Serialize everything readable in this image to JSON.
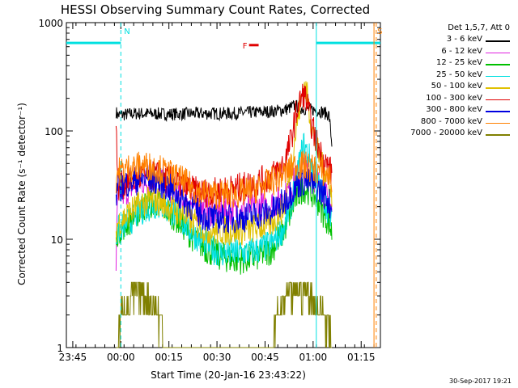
{
  "chart_data": {
    "type": "line",
    "title": "HESSI Observing Summary Count Rates, Corrected",
    "xlabel": "Start Time (20-Jan-16 23:43:22)",
    "ylabel": "Corrected Count Rate (s⁻¹ detector⁻¹)",
    "yscale": "log",
    "ylim": [
      1,
      1000
    ],
    "xlim_minutes": [
      -2,
      96
    ],
    "x_tick_labels": [
      "23:45",
      "00:00",
      "00:15",
      "00:30",
      "00:45",
      "01:00",
      "01:15"
    ],
    "x_tick_minutes": [
      0,
      15,
      30,
      45,
      60,
      75,
      90
    ],
    "y_tick_labels": [
      "1",
      "10",
      "100",
      "1000"
    ],
    "y_tick_values": [
      1,
      10,
      100,
      1000
    ],
    "legend_title": "Det 1,5,7, Att 0",
    "series": [
      {
        "name": "3 - 6 keV",
        "color": "#000000",
        "x": [
          13.5,
          14,
          20,
          30,
          40,
          50,
          55,
          60,
          65,
          67,
          68,
          69,
          70,
          72,
          74,
          76,
          78,
          80,
          81
        ],
        "y": [
          150,
          140,
          145,
          143,
          145,
          145,
          148,
          150,
          155,
          160,
          165,
          170,
          168,
          160,
          158,
          155,
          150,
          140,
          68
        ]
      },
      {
        "name": "6 - 12 keV",
        "color": "#e020e0",
        "x": [
          13.5,
          14,
          18,
          22,
          26,
          30,
          34,
          38,
          40,
          42,
          44,
          46,
          50,
          54,
          58,
          62,
          66,
          68,
          70,
          72,
          74,
          76,
          78,
          80,
          81
        ],
        "y": [
          6,
          24,
          30,
          34,
          34,
          30,
          24,
          20,
          19,
          18,
          18,
          18,
          18,
          19,
          20,
          21,
          24,
          30,
          38,
          45,
          42,
          35,
          28,
          22,
          18
        ]
      },
      {
        "name": "12 - 25 keV",
        "color": "#00c000",
        "x": [
          13.5,
          14,
          18,
          22,
          26,
          30,
          34,
          38,
          40,
          42,
          44,
          46,
          50,
          54,
          58,
          62,
          66,
          68,
          70,
          72,
          74,
          76,
          78,
          80,
          81
        ],
        "y": [
          9,
          12,
          15,
          20,
          22,
          18,
          14,
          10,
          9,
          8,
          7.5,
          7,
          6.5,
          6.5,
          7,
          8,
          12,
          18,
          25,
          30,
          28,
          24,
          18,
          14,
          11
        ]
      },
      {
        "name": "25 - 50 keV",
        "color": "#00e0e0",
        "x": [
          13.5,
          14,
          18,
          22,
          26,
          30,
          34,
          38,
          40,
          42,
          44,
          46,
          50,
          54,
          58,
          62,
          66,
          68,
          70,
          72,
          74,
          76,
          78,
          80,
          81
        ],
        "y": [
          10,
          12,
          15,
          19,
          21,
          19,
          15,
          11,
          10,
          9,
          8,
          7.5,
          7.5,
          7.5,
          8,
          9,
          13,
          20,
          40,
          75,
          55,
          35,
          25,
          18,
          13
        ]
      },
      {
        "name": "50 - 100 keV",
        "color": "#e0c000",
        "x": [
          13.5,
          14,
          18,
          22,
          26,
          30,
          34,
          38,
          40,
          42,
          44,
          46,
          50,
          54,
          58,
          62,
          66,
          68,
          70,
          72,
          73,
          74,
          76,
          78,
          80,
          81
        ],
        "y": [
          12,
          14,
          18,
          22,
          23,
          20,
          17,
          14,
          13,
          12,
          12,
          12,
          12,
          12,
          13,
          14,
          20,
          45,
          120,
          260,
          230,
          140,
          70,
          45,
          35,
          20
        ]
      },
      {
        "name": "100 - 300 keV",
        "color": "#e00000",
        "x": [
          13.5,
          14,
          18,
          22,
          26,
          30,
          34,
          38,
          40,
          42,
          44,
          46,
          50,
          54,
          58,
          62,
          66,
          68,
          70,
          72,
          73,
          74,
          76,
          78,
          80,
          81
        ],
        "y": [
          150,
          30,
          35,
          38,
          39,
          35,
          32,
          28,
          27,
          27,
          27,
          28,
          29,
          31,
          34,
          38,
          50,
          80,
          160,
          220,
          190,
          130,
          80,
          55,
          45,
          40
        ]
      },
      {
        "name": "300 - 800 keV",
        "color": "#0000e0",
        "x": [
          13.5,
          14,
          18,
          22,
          26,
          30,
          34,
          38,
          40,
          42,
          44,
          46,
          50,
          54,
          58,
          62,
          66,
          68,
          70,
          72,
          74,
          76,
          78,
          80,
          81
        ],
        "y": [
          25,
          30,
          34,
          36,
          35,
          30,
          24,
          19,
          17,
          16,
          15.5,
          15.5,
          15.5,
          16,
          17,
          18,
          22,
          27,
          32,
          34,
          33,
          30,
          27,
          22,
          18
        ]
      },
      {
        "name": "800 - 7000 keV",
        "color": "#ff8000",
        "x": [
          13.5,
          14,
          18,
          22,
          26,
          30,
          34,
          38,
          40,
          42,
          44,
          46,
          50,
          54,
          58,
          62,
          66,
          68,
          70,
          72,
          74,
          76,
          78,
          80,
          81
        ],
        "y": [
          36,
          42,
          46,
          48,
          46,
          40,
          35,
          29,
          27,
          26,
          26,
          26,
          26,
          27,
          30,
          34,
          40,
          45,
          48,
          48,
          46,
          44,
          42,
          38,
          34
        ]
      },
      {
        "name": "7000 - 20000 keV",
        "color": "#808000",
        "x": [
          13.5,
          15,
          17,
          19,
          21,
          23,
          25,
          27,
          29,
          62,
          64,
          66,
          68,
          70,
          72,
          74,
          76,
          78,
          80,
          81
        ],
        "y": [
          1,
          2,
          2.5,
          3,
          3.5,
          3,
          2.5,
          2,
          1,
          1,
          2,
          2.5,
          3,
          3.5,
          3.5,
          3,
          2.5,
          2,
          1.5,
          1
        ]
      }
    ],
    "night_bars": [
      {
        "from_minute": -2,
        "to_minute": 15,
        "value": 650
      },
      {
        "from_minute": 76,
        "to_minute": 96,
        "value": 650
      }
    ],
    "annotations": [
      {
        "text": "N",
        "minute": 15,
        "color": "#00e0e0"
      },
      {
        "text": "S",
        "minute": 94,
        "color": "#ff8000"
      },
      {
        "text": "F",
        "minute": 53,
        "value": 620,
        "color": "#e00000",
        "bar_from": 55,
        "bar_to": 58
      }
    ],
    "vertical_lines": [
      {
        "minute": 15,
        "color": "#00e0e0",
        "dashed": true
      },
      {
        "minute": 76,
        "color": "#00e0e0",
        "dashed": false
      },
      {
        "minute": 94,
        "color": "#ff8000",
        "dashed": false
      },
      {
        "minute": 94.7,
        "color": "#ff8000",
        "dashed": true
      }
    ]
  },
  "footer": {
    "timestamp": "30-Sep-2017 19:21"
  }
}
